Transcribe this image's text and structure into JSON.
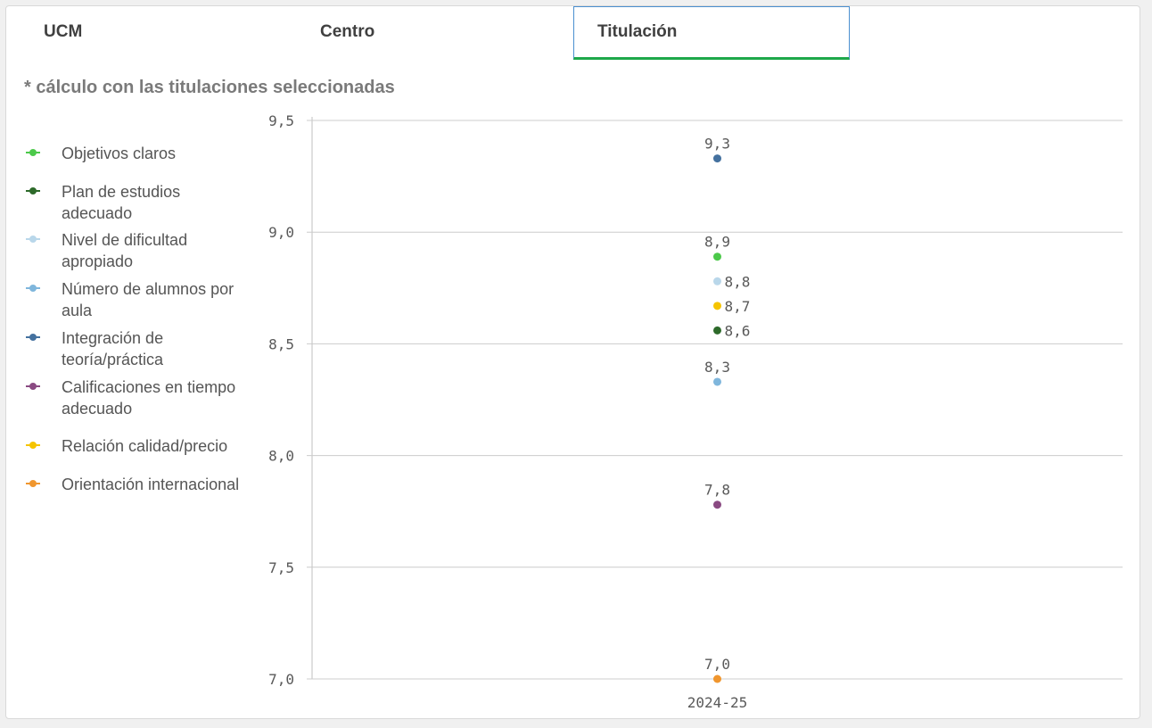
{
  "tabs": [
    {
      "label": "UCM",
      "selected": false
    },
    {
      "label": "Centro",
      "selected": false
    },
    {
      "label": "Titulación",
      "selected": true
    }
  ],
  "note": "* cálculo con las titulaciones seleccionadas",
  "colors": {
    "tab_selected_border": "#4a8fd0",
    "tab_selected_underline": "#1ea84a",
    "grid": "#cccccc",
    "text": "#595959"
  },
  "chart_data": {
    "type": "scatter",
    "categories": [
      "2024-25"
    ],
    "ylim": [
      7.0,
      9.5
    ],
    "yticks": [
      "9,5",
      "9,0",
      "8,5",
      "8,0",
      "7,5",
      "7,0"
    ],
    "ytick_values": [
      9.5,
      9.0,
      8.5,
      8.0,
      7.5,
      7.0
    ],
    "grid": true,
    "legend_position": "left",
    "series": [
      {
        "name": "Objetivos claros",
        "color": "#4cc94a",
        "values": [
          8.89
        ],
        "label": "8,9",
        "label_pos": "above"
      },
      {
        "name": "Plan de estudios adecuado",
        "color": "#2d6a2a",
        "values": [
          8.56
        ],
        "label": "8,6",
        "label_pos": "right"
      },
      {
        "name": "Nivel de dificultad apropiado",
        "color": "#b9d7ea",
        "values": [
          8.78
        ],
        "label": "8,8",
        "label_pos": "right"
      },
      {
        "name": "Número de alumnos por aula",
        "color": "#7fb6dc",
        "values": [
          8.33
        ],
        "label": "8,3",
        "label_pos": "above"
      },
      {
        "name": "Integración de teoría/práctica",
        "color": "#44719f",
        "values": [
          9.33
        ],
        "label": "9,3",
        "label_pos": "above"
      },
      {
        "name": "Calificaciones en tiempo adecuado",
        "color": "#8a4a82",
        "values": [
          7.78
        ],
        "label": "7,8",
        "label_pos": "above"
      },
      {
        "name": "Relación calidad/precio",
        "color": "#f5c400",
        "values": [
          8.67
        ],
        "label": "8,7",
        "label_pos": "right"
      },
      {
        "name": "Orientación internacional",
        "color": "#f0962e",
        "values": [
          7.0
        ],
        "label": "7,0",
        "label_pos": "above"
      }
    ]
  }
}
